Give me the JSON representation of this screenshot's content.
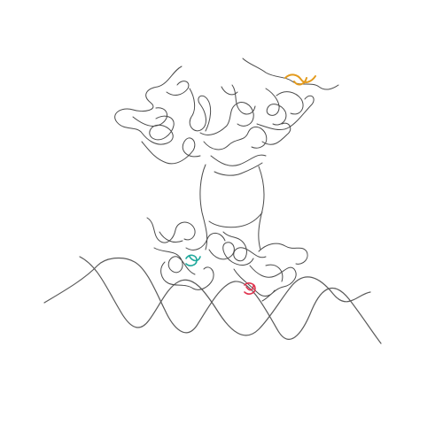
{
  "figure": {
    "background": "#ffffff",
    "structure_color": "#4a4a4a",
    "dna_color": "#5a5a5a"
  },
  "highlights": [
    {
      "name": "highlight-orange-residue",
      "color": "#e39a1c"
    },
    {
      "name": "highlight-cyan-residue",
      "color": "#1fa99c"
    },
    {
      "name": "highlight-red-residue",
      "color": "#e0334e"
    }
  ]
}
